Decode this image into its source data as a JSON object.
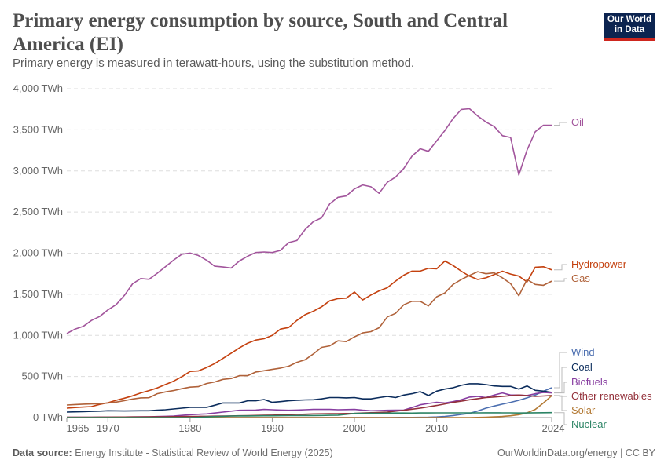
{
  "header": {
    "title": "Primary energy consumption by source, South and Central America (EI)",
    "subtitle": "Primary energy is measured in terawatt-hours, using the substitution method.",
    "logo_text": "Our World in Data"
  },
  "footer": {
    "source_label": "Data source:",
    "source_text": "Energy Institute - Statistical Review of World Energy (2025)",
    "credit": "OurWorldinData.org/energy | CC BY"
  },
  "chart_data": {
    "type": "line",
    "title": "Primary energy consumption by source, South and Central America (EI)",
    "unit": "TWh",
    "x_start": 1965,
    "x_end": 2024,
    "xticks": [
      "1965",
      "1970",
      "1980",
      "1990",
      "2000",
      "2010",
      "2024"
    ],
    "yticks": [
      "0 TWh",
      "500 TWh",
      "1,000 TWh",
      "1,500 TWh",
      "2,000 TWh",
      "2,500 TWh",
      "3,000 TWh",
      "3,500 TWh",
      "4,000 TWh"
    ],
    "ylim": [
      0,
      4000
    ],
    "grid": "horizontal dashed",
    "legend": "right, labels at line ends",
    "series": [
      {
        "name": "Oil",
        "color": "#a2559c",
        "values": [
          1023,
          1077,
          1109,
          1182,
          1230,
          1310,
          1374,
          1485,
          1628,
          1692,
          1682,
          1756,
          1835,
          1915,
          1988,
          2001,
          1972,
          1915,
          1842,
          1832,
          1820,
          1905,
          1963,
          2008,
          2014,
          2008,
          2033,
          2129,
          2154,
          2288,
          2384,
          2430,
          2600,
          2680,
          2696,
          2782,
          2830,
          2808,
          2728,
          2862,
          2925,
          3030,
          3180,
          3270,
          3238,
          3365,
          3492,
          3636,
          3748,
          3757,
          3668,
          3595,
          3540,
          3429,
          3407,
          2951,
          3253,
          3477,
          3556,
          3556
        ]
      },
      {
        "name": "Hydropower",
        "color": "#c4410f",
        "values": [
          115,
          122,
          128,
          134,
          160,
          180,
          210,
          236,
          264,
          300,
          328,
          360,
          402,
          443,
          497,
          561,
          567,
          609,
          657,
          720,
          784,
          848,
          905,
          943,
          959,
          1000,
          1077,
          1096,
          1182,
          1252,
          1294,
          1348,
          1421,
          1447,
          1453,
          1527,
          1431,
          1491,
          1542,
          1580,
          1660,
          1733,
          1781,
          1781,
          1816,
          1810,
          1905,
          1850,
          1780,
          1720,
          1680,
          1700,
          1740,
          1780,
          1746,
          1721,
          1651,
          1829,
          1835,
          1797
        ]
      },
      {
        "name": "Gas",
        "color": "#b0623a",
        "values": [
          153,
          158,
          163,
          166,
          169,
          178,
          188,
          205,
          225,
          240,
          242,
          290,
          312,
          328,
          351,
          370,
          376,
          414,
          433,
          465,
          475,
          510,
          510,
          555,
          570,
          586,
          602,
          625,
          672,
          704,
          774,
          854,
          873,
          934,
          924,
          982,
          1030,
          1045,
          1093,
          1224,
          1268,
          1373,
          1415,
          1415,
          1358,
          1469,
          1517,
          1620,
          1680,
          1730,
          1775,
          1750,
          1760,
          1700,
          1630,
          1482,
          1680,
          1620,
          1610,
          1660
        ]
      },
      {
        "name": "Wind",
        "color": "#4c6fb0",
        "values": [
          0,
          0,
          0,
          0,
          0,
          0,
          0,
          0,
          0,
          0,
          0,
          0,
          0,
          0,
          0,
          0,
          0,
          0,
          0,
          0,
          0,
          0,
          0,
          0,
          0,
          0,
          0,
          0,
          0,
          0,
          0,
          0,
          0,
          0,
          0,
          0,
          0,
          0,
          0,
          0,
          1,
          2,
          2,
          3,
          4,
          8,
          14,
          25,
          38,
          51,
          80,
          115,
          140,
          163,
          185,
          210,
          240,
          274,
          320,
          363
        ]
      },
      {
        "name": "Coal",
        "color": "#0b2c5c",
        "values": [
          67,
          70,
          72,
          75,
          78,
          83,
          82,
          80,
          82,
          83,
          83,
          90,
          95,
          105,
          115,
          124,
          124,
          124,
          150,
          178,
          178,
          178,
          204,
          204,
          220,
          185,
          194,
          204,
          210,
          215,
          217,
          227,
          243,
          243,
          240,
          243,
          227,
          227,
          243,
          258,
          243,
          274,
          290,
          315,
          268,
          322,
          347,
          363,
          392,
          411,
          411,
          401,
          385,
          379,
          379,
          347,
          385,
          331,
          322,
          306
        ]
      },
      {
        "name": "Biofuels",
        "color": "#883ea1",
        "values": [
          5,
          5,
          5,
          5,
          6,
          6,
          6,
          7,
          8,
          10,
          10,
          12,
          15,
          19,
          27,
          35,
          40,
          45,
          55,
          67,
          78,
          89,
          90,
          92,
          99,
          95,
          92,
          89,
          92,
          95,
          99,
          99,
          99,
          95,
          97,
          99,
          90,
          83,
          86,
          89,
          90,
          92,
          121,
          156,
          172,
          185,
          178,
          194,
          217,
          249,
          258,
          243,
          274,
          300,
          274,
          274,
          268,
          290,
          306,
          300
        ]
      },
      {
        "name": "Other renewables",
        "color": "#93303a",
        "values": [
          5,
          5,
          5,
          5,
          6,
          6,
          7,
          7,
          8,
          8,
          9,
          10,
          10,
          11,
          12,
          13,
          14,
          15,
          17,
          19,
          20,
          22,
          24,
          26,
          28,
          30,
          32,
          35,
          38,
          41,
          45,
          46,
          47,
          48,
          50,
          51,
          55,
          59,
          63,
          67,
          78,
          89,
          102,
          115,
          131,
          147,
          166,
          185,
          200,
          217,
          230,
          243,
          250,
          258,
          266,
          274,
          266,
          258,
          263,
          268
        ]
      },
      {
        "name": "Solar",
        "color": "#b37a35",
        "values": [
          0,
          0,
          0,
          0,
          0,
          0,
          0,
          0,
          0,
          0,
          0,
          0,
          0,
          0,
          0,
          0,
          0,
          0,
          0,
          0,
          0,
          0,
          0,
          0,
          0,
          0,
          0,
          0,
          0,
          0,
          0,
          0,
          0,
          0,
          0,
          0,
          0,
          0,
          0,
          0,
          0,
          0,
          0,
          0,
          0,
          0,
          0,
          0,
          0,
          0,
          2,
          5,
          9,
          13,
          22,
          35,
          57,
          99,
          178,
          265
        ]
      },
      {
        "name": "Nuclear",
        "color": "#2c8465",
        "values": [
          0,
          0,
          0,
          0,
          0,
          0,
          0,
          0,
          0,
          0,
          0,
          0,
          0,
          0,
          0,
          0,
          3,
          8,
          12,
          15,
          19,
          20,
          20,
          21,
          22,
          22,
          23,
          24,
          24,
          25,
          25,
          26,
          28,
          30,
          40,
          51,
          52,
          53,
          52,
          54,
          55,
          55,
          54,
          56,
          56,
          57,
          57,
          57,
          57,
          57,
          57,
          58,
          58,
          57,
          57,
          55,
          56,
          58,
          59,
          60
        ]
      }
    ]
  }
}
